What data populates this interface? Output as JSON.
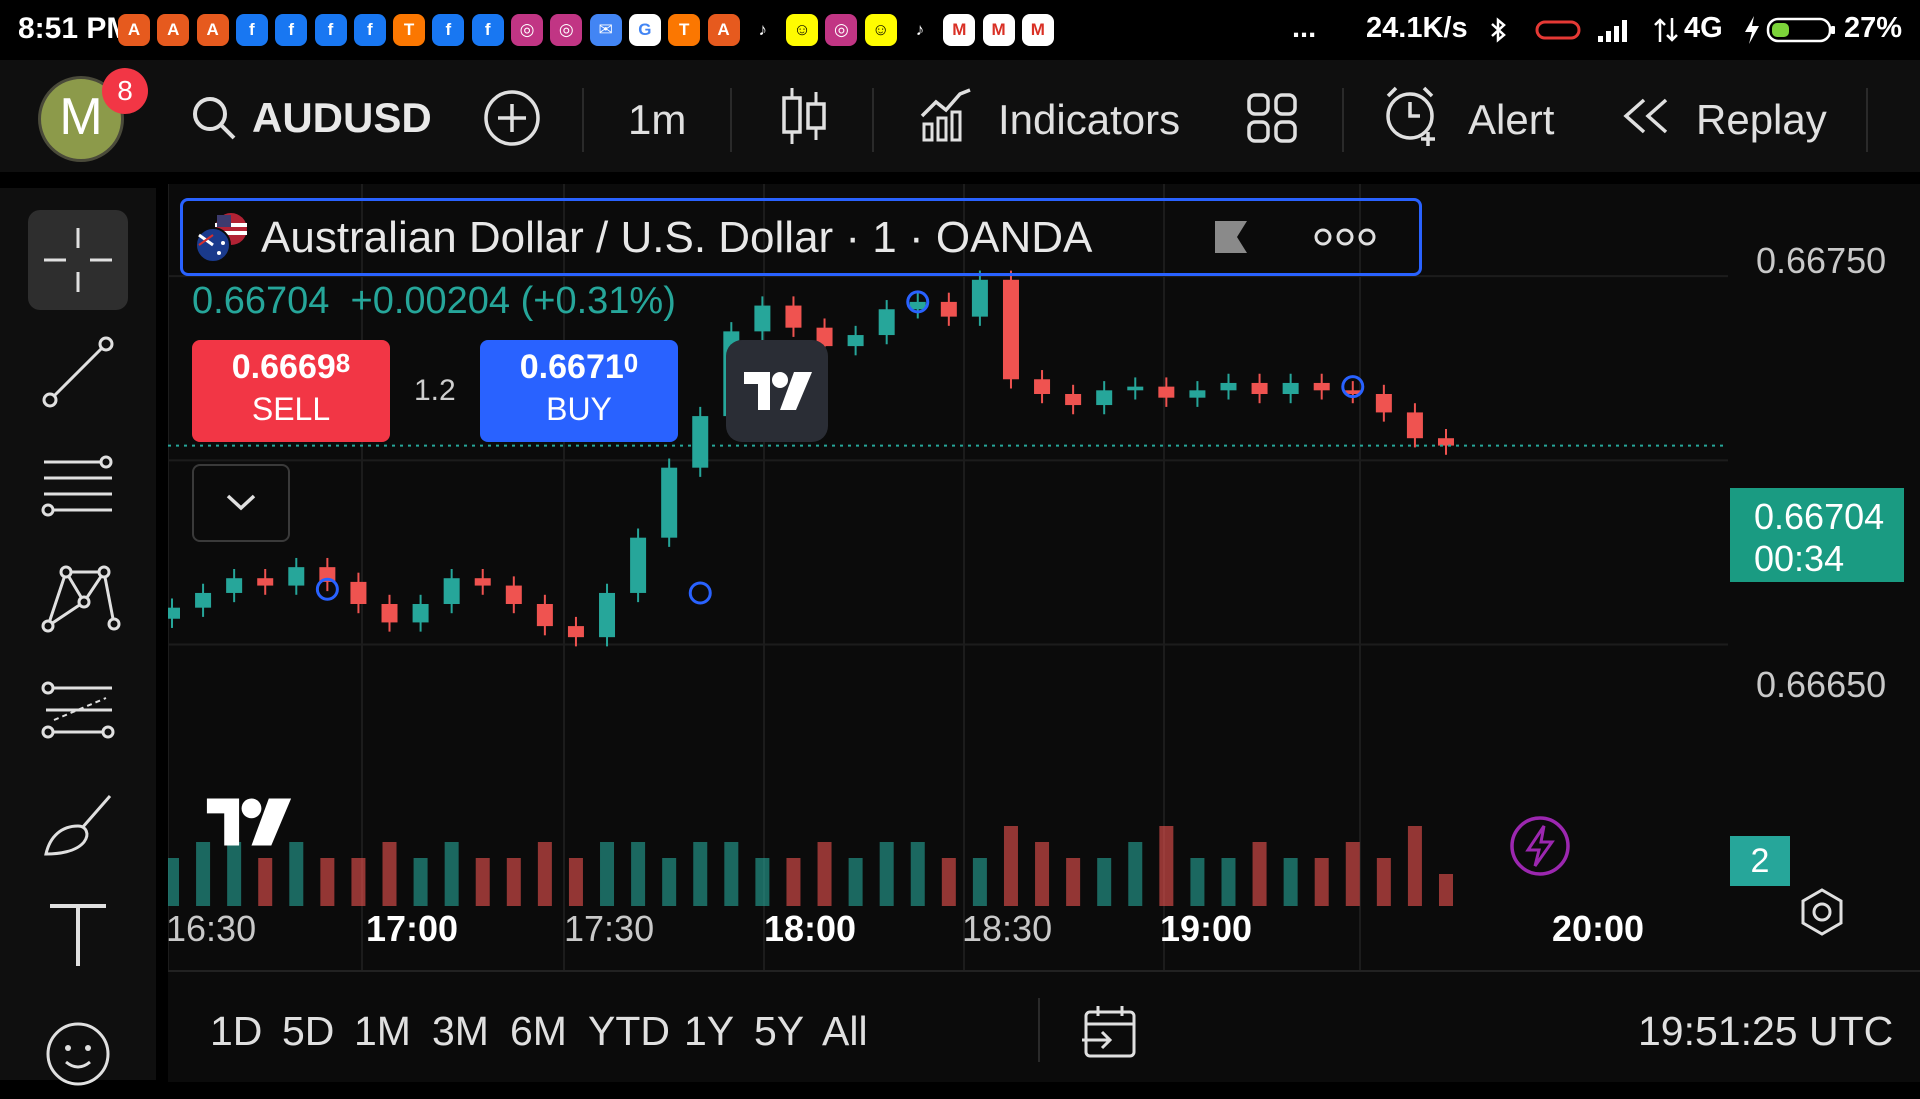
{
  "status_bar": {
    "time": "8:51 PM",
    "notification_icons": [
      "aliexpress-icon",
      "aliexpress-icon",
      "aliexpress-icon",
      "facebook-icon",
      "facebook-icon",
      "facebook-icon",
      "facebook-icon",
      "temu-icon",
      "facebook-icon",
      "facebook-icon",
      "instagram-icon",
      "instagram-icon",
      "messages-icon",
      "google-icon",
      "temu-icon",
      "aliexpress-icon",
      "tiktok-icon",
      "snapchat-icon",
      "instagram-icon",
      "snapchat-icon",
      "tiktok-icon",
      "gmail-icon",
      "gmail-icon",
      "gmail-icon"
    ],
    "more": "...",
    "net_speed": "24.1K/s",
    "network": "4G",
    "battery": "27%"
  },
  "toolbar": {
    "avatar_letter": "M",
    "avatar_badge": "8",
    "symbol": "AUDUSD",
    "interval": "1m",
    "indicators_label": "Indicators",
    "alert_label": "Alert",
    "replay_label": "Replay"
  },
  "legend": {
    "title": "Australian Dollar / U.S. Dollar · 1 · OANDA",
    "price": "0.66704",
    "change": "+0.00204 (+0.31%)",
    "sell_price_main": "0.6669",
    "sell_price_pip": "8",
    "sell_label": "SELL",
    "spread": "1.2",
    "buy_price_main": "0.6671",
    "buy_price_pip": "0",
    "buy_label": "BUY"
  },
  "price_scale": {
    "labels": [
      "0.66750",
      "0.66650"
    ],
    "current_price": "0.66704",
    "countdown": "00:34",
    "volume_badge": "2"
  },
  "time_axis": {
    "labels": [
      {
        "text": "16:30",
        "bold": false
      },
      {
        "text": "17:00",
        "bold": true
      },
      {
        "text": "17:30",
        "bold": false
      },
      {
        "text": "18:00",
        "bold": true
      },
      {
        "text": "18:30",
        "bold": false
      },
      {
        "text": "19:00",
        "bold": true
      },
      {
        "text": "20:00",
        "bold": true
      }
    ]
  },
  "bottom_bar": {
    "ranges": [
      "1D",
      "5D",
      "1M",
      "3M",
      "6M",
      "YTD",
      "1Y",
      "5Y",
      "All"
    ],
    "clock": "19:51:25 UTC"
  },
  "colors": {
    "up": "#26a69a",
    "down": "#ef5350",
    "sell_bg": "#f23645",
    "buy_bg": "#2962ff",
    "price_tag": "#1a9b82",
    "legend_border": "#2962ff"
  },
  "chart_data": {
    "type": "candlestick",
    "symbol": "AUDUSD",
    "interval": "1m",
    "x": [
      "16:30",
      "16:35",
      "16:40",
      "16:45",
      "16:50",
      "16:55",
      "17:00",
      "17:05",
      "17:10",
      "17:15",
      "17:20",
      "17:25",
      "17:30",
      "17:35",
      "17:40",
      "17:45",
      "17:50",
      "17:55",
      "18:00",
      "18:05",
      "18:10",
      "18:15",
      "18:20",
      "18:25",
      "18:30",
      "18:35",
      "18:40",
      "18:45",
      "18:50",
      "18:55",
      "19:00",
      "19:05",
      "19:10",
      "19:15",
      "19:20",
      "19:25",
      "19:30",
      "19:35",
      "19:40",
      "19:45",
      "19:50",
      "19:51"
    ],
    "close": [
      0.6666,
      0.66664,
      0.66668,
      0.66666,
      0.66671,
      0.66667,
      0.66661,
      0.66656,
      0.66661,
      0.66668,
      0.66666,
      0.66661,
      0.66655,
      0.66652,
      0.66664,
      0.66679,
      0.66698,
      0.66712,
      0.66735,
      0.66742,
      0.66736,
      0.66731,
      0.66734,
      0.66741,
      0.66743,
      0.66739,
      0.66749,
      0.66722,
      0.66718,
      0.66715,
      0.66719,
      0.6672,
      0.66717,
      0.66719,
      0.66721,
      0.66718,
      0.66721,
      0.66719,
      0.66718,
      0.66713,
      0.66706,
      0.66704
    ],
    "volume": [
      3,
      4,
      4,
      3,
      4,
      3,
      3,
      4,
      3,
      4,
      3,
      3,
      4,
      3,
      4,
      4,
      3,
      4,
      4,
      3,
      3,
      4,
      3,
      4,
      4,
      3,
      3,
      5,
      4,
      3,
      3,
      4,
      5,
      3,
      3,
      4,
      3,
      3,
      4,
      3,
      5,
      2
    ],
    "y_axis_labels": [
      "0.66750",
      "0.66650"
    ],
    "ylim": [
      0.66623,
      0.66775
    ],
    "last_price": 0.66704,
    "price_change": "+0.00204 (+0.31%)"
  }
}
